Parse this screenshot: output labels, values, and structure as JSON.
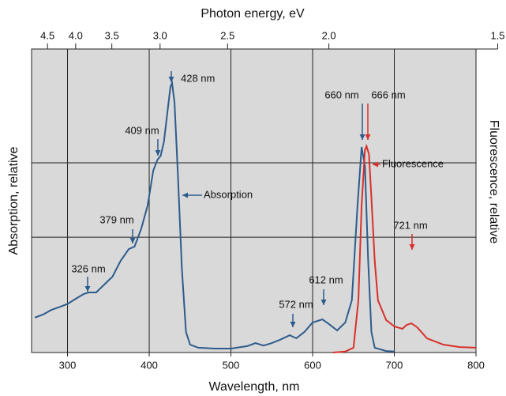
{
  "chart_data": {
    "type": "line",
    "title": "Photon energy, eV",
    "xlabel": "Wavelength, nm",
    "ylabel": "Absorption, relative",
    "y2label": "Fluorescence, relative",
    "xlim": [
      256,
      800
    ],
    "ylim": [
      0,
      1
    ],
    "xticks": [
      300,
      400,
      500,
      600,
      700,
      800
    ],
    "x2ticks": [
      4.5,
      {
        "value": 4,
        "label": "4.0"
      },
      3.5,
      {
        "value": 3,
        "label": "3.0"
      },
      2.5,
      {
        "value": 2,
        "label": "2.0"
      },
      1.5
    ],
    "ygrid": [
      0.38,
      0.625
    ],
    "grid": true,
    "series": [
      {
        "name": "Absorption",
        "color": "#2d5b8c",
        "x": [
          260,
          270,
          280,
          290,
          300,
          310,
          320,
          326,
          335,
          345,
          355,
          365,
          375,
          382,
          390,
          398,
          405,
          410,
          414,
          418,
          422,
          426,
          428,
          431,
          435,
          440,
          445,
          450,
          460,
          480,
          500,
          520,
          530,
          540,
          550,
          560,
          572,
          580,
          590,
          600,
          612,
          620,
          630,
          640,
          648,
          655,
          660,
          664,
          668,
          672,
          676,
          690,
          700
        ],
        "values": [
          0.115,
          0.125,
          0.14,
          0.15,
          0.16,
          0.177,
          0.193,
          0.198,
          0.198,
          0.224,
          0.25,
          0.302,
          0.341,
          0.349,
          0.406,
          0.484,
          0.6,
          0.635,
          0.648,
          0.695,
          0.786,
          0.875,
          0.888,
          0.823,
          0.589,
          0.276,
          0.068,
          0.026,
          0.016,
          0.013,
          0.013,
          0.021,
          0.031,
          0.023,
          0.031,
          0.042,
          0.057,
          0.047,
          0.068,
          0.099,
          0.109,
          0.094,
          0.073,
          0.099,
          0.172,
          0.484,
          0.677,
          0.615,
          0.302,
          0.068,
          0.016,
          0.005,
          0.003
        ]
      },
      {
        "name": "Fluorescence",
        "color": "#d8302a",
        "x": [
          625,
          640,
          650,
          656,
          660,
          664,
          666,
          669,
          672,
          676,
          680,
          690,
          700,
          710,
          715,
          721,
          728,
          740,
          760,
          780,
          800
        ],
        "values": [
          0.0,
          0.003,
          0.016,
          0.172,
          0.484,
          0.667,
          0.68,
          0.654,
          0.51,
          0.302,
          0.172,
          0.107,
          0.086,
          0.078,
          0.091,
          0.096,
          0.083,
          0.047,
          0.026,
          0.018,
          0.016
        ]
      }
    ],
    "annotations": [
      {
        "text": "428 nm",
        "color": "#2d5b8c"
      },
      {
        "text": "409 nm",
        "color": "#2d5b8c"
      },
      {
        "text": "379 nm",
        "color": "#2d5b8c"
      },
      {
        "text": "326 nm",
        "color": "#2d5b8c"
      },
      {
        "text": "572 nm",
        "color": "#2d5b8c"
      },
      {
        "text": "612 nm",
        "color": "#2d5b8c"
      },
      {
        "text": "660 nm",
        "color": "#2d5b8c"
      },
      {
        "text": "666 nm",
        "color": "#d8302a"
      },
      {
        "text": "721 nm",
        "color": "#d8302a"
      }
    ]
  }
}
